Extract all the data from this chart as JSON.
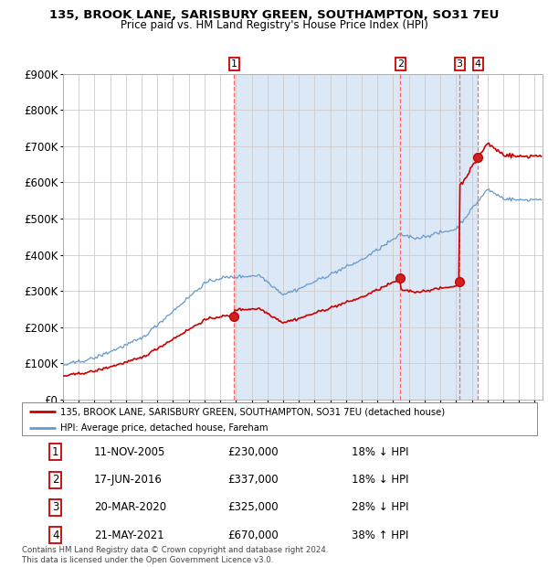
{
  "title": "135, BROOK LANE, SARISBURY GREEN, SOUTHAMPTON, SO31 7EU",
  "subtitle": "Price paid vs. HM Land Registry's House Price Index (HPI)",
  "legend_label_red": "135, BROOK LANE, SARISBURY GREEN, SOUTHAMPTON, SO31 7EU (detached house)",
  "legend_label_blue": "HPI: Average price, detached house, Fareham",
  "footer_line1": "Contains HM Land Registry data © Crown copyright and database right 2024.",
  "footer_line2": "This data is licensed under the Open Government Licence v3.0.",
  "row_data": [
    [
      "1",
      "11-NOV-2005",
      "£230,000",
      "18% ↓ HPI"
    ],
    [
      "2",
      "17-JUN-2016",
      "£337,000",
      "18% ↓ HPI"
    ],
    [
      "3",
      "20-MAR-2020",
      "£325,000",
      "28% ↓ HPI"
    ],
    [
      "4",
      "21-MAY-2021",
      "£670,000",
      "38% ↑ HPI"
    ]
  ],
  "transaction_prices": [
    230000,
    337000,
    325000,
    670000
  ],
  "transaction_years": [
    2005.87,
    2016.46,
    2020.22,
    2021.38
  ],
  "ylim": [
    0,
    900000
  ],
  "yticks": [
    0,
    100000,
    200000,
    300000,
    400000,
    500000,
    600000,
    700000,
    800000,
    900000
  ],
  "color_red": "#cc0000",
  "color_blue": "#6699cc",
  "color_blue_fill": "#dce8f5",
  "color_grid": "#cccccc",
  "color_dashed": "#ff6666",
  "background_chart": "#ffffff",
  "background_fig": "#ffffff",
  "xmin": 1995.0,
  "xmax": 2025.5,
  "hpi_seed": 42
}
